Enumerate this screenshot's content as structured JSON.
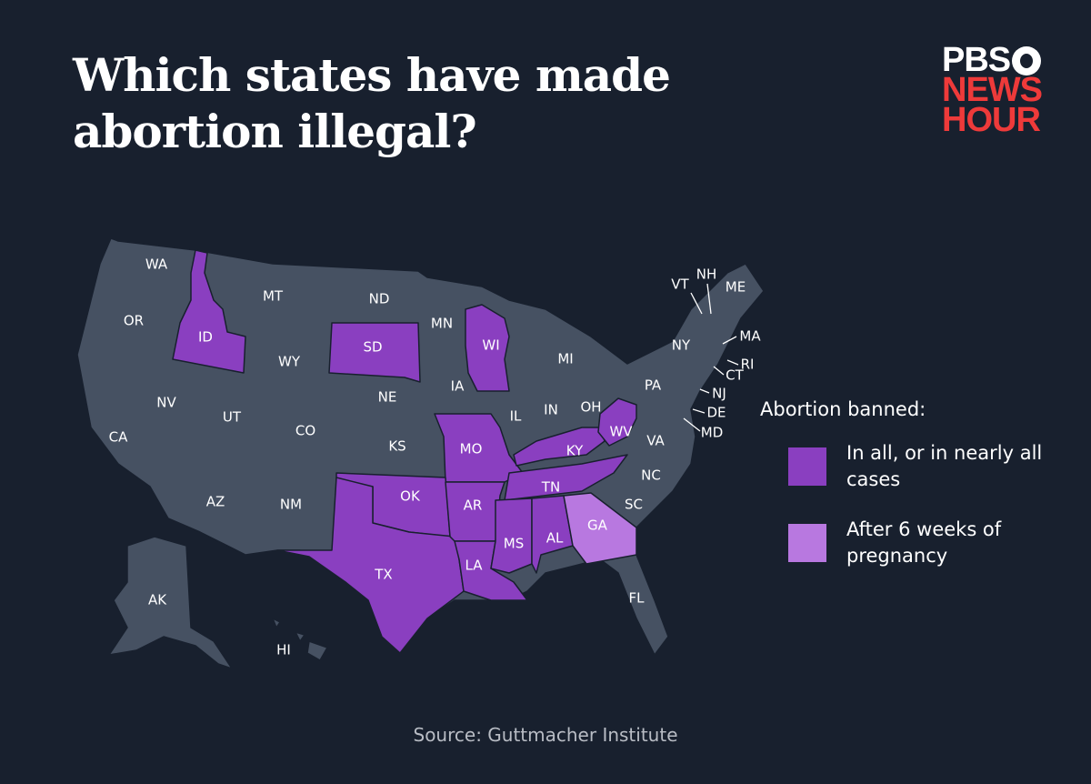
{
  "title": "Which states have made abortion illegal?",
  "logo": {
    "line1": "PBS",
    "line2": "NEWS",
    "line3": "HOUR"
  },
  "colors": {
    "background": "#18202e",
    "state_default": "#465162",
    "banned_all": "#8a3fc0",
    "banned_6_weeks": "#b878e0",
    "logo_red": "#ee3a3a"
  },
  "legend": {
    "title": "Abortion banned:",
    "items": [
      {
        "label": "In all, or in nearly all cases",
        "color": "#8a3fc0"
      },
      {
        "label": "After 6 weeks of pregnancy",
        "color": "#b878e0"
      }
    ]
  },
  "states": {
    "banned_all": [
      "ID",
      "SD",
      "WI",
      "MO",
      "KY",
      "WV",
      "TN",
      "OK",
      "TX",
      "AR",
      "LA",
      "MS",
      "AL"
    ],
    "banned_6_weeks": [
      "GA"
    ],
    "labels": [
      "WA",
      "OR",
      "CA",
      "NV",
      "ID",
      "MT",
      "WY",
      "UT",
      "AZ",
      "CO",
      "NM",
      "ND",
      "SD",
      "NE",
      "KS",
      "OK",
      "TX",
      "MN",
      "IA",
      "MO",
      "AR",
      "LA",
      "WI",
      "IL",
      "MI",
      "IN",
      "OH",
      "KY",
      "TN",
      "MS",
      "AL",
      "GA",
      "FL",
      "SC",
      "NC",
      "VA",
      "WV",
      "PA",
      "NY",
      "VT",
      "NH",
      "ME",
      "MA",
      "RI",
      "CT",
      "NJ",
      "DE",
      "MD",
      "AK",
      "HI"
    ]
  },
  "source": "Source: Guttmacher Institute"
}
